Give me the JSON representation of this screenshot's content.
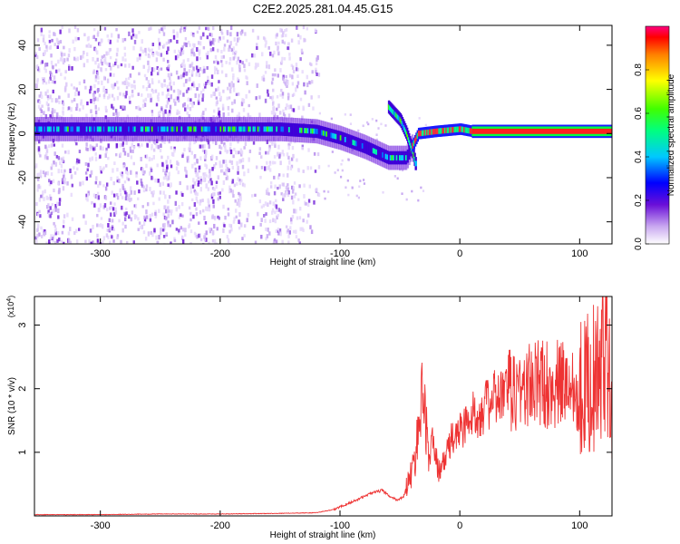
{
  "title": "C2E2.2025.281.04.45.G15",
  "chart_data": [
    {
      "type": "heatmap",
      "title": "C2E2.2025.281.04.45.G15",
      "xlabel": "Height of straight line (km)",
      "ylabel": "Frequency (Hz)",
      "xlim": [
        -355,
        127
      ],
      "ylim": [
        -50,
        49
      ],
      "x_ticks": [
        -300,
        -200,
        -100,
        0,
        100
      ],
      "y_ticks": [
        -40,
        -20,
        0,
        20,
        40
      ],
      "colorbar": {
        "label": "Normalized spectral amplitude",
        "range": [
          0.0,
          1.0
        ],
        "ticks": [
          0.0,
          0.2,
          0.4,
          0.6,
          0.8
        ]
      },
      "signal_track": [
        {
          "x": -355,
          "y": 2
        },
        {
          "x": -300,
          "y": 2
        },
        {
          "x": -250,
          "y": 2
        },
        {
          "x": -200,
          "y": 2
        },
        {
          "x": -150,
          "y": 2
        },
        {
          "x": -120,
          "y": 1
        },
        {
          "x": -100,
          "y": -2
        },
        {
          "x": -80,
          "y": -6
        },
        {
          "x": -60,
          "y": -11
        },
        {
          "x": -45,
          "y": -11
        },
        {
          "x": -35,
          "y": 0
        },
        {
          "x": -20,
          "y": 1
        },
        {
          "x": 0,
          "y": 2
        },
        {
          "x": 10,
          "y": 1
        },
        {
          "x": 60,
          "y": 1
        },
        {
          "x": 100,
          "y": 1
        },
        {
          "x": 127,
          "y": 1
        }
      ],
      "branch_track": [
        {
          "x": -60,
          "y": 12
        },
        {
          "x": -50,
          "y": 6
        },
        {
          "x": -45,
          "y": 0
        },
        {
          "x": -40,
          "y": -8
        },
        {
          "x": -37,
          "y": -15
        }
      ]
    },
    {
      "type": "line",
      "xlabel": "Height of straight line (km)",
      "ylabel": "SNR (10 * v/v)",
      "y_multiplier": "(x10",
      "y_multiplier_exp": "4",
      "y_multiplier_close": ")",
      "xlim": [
        -355,
        127
      ],
      "ylim": [
        0,
        3.45
      ],
      "x_ticks": [
        -300,
        -200,
        -100,
        0,
        100
      ],
      "y_ticks": [
        1,
        2,
        3
      ],
      "line_color": "#ee3333",
      "series": [
        {
          "name": "SNR",
          "x": [
            -355,
            -300,
            -250,
            -200,
            -150,
            -120,
            -105,
            -95,
            -85,
            -75,
            -65,
            -58,
            -52,
            -47,
            -43,
            -38,
            -34,
            -30,
            -26,
            -22,
            -18,
            -14,
            -10,
            -5,
            0,
            5,
            10,
            20,
            30,
            40,
            50,
            60,
            70,
            80,
            90,
            100,
            110,
            118,
            122,
            127
          ],
          "y": [
            0.02,
            0.02,
            0.03,
            0.03,
            0.04,
            0.05,
            0.1,
            0.18,
            0.26,
            0.35,
            0.4,
            0.3,
            0.25,
            0.3,
            0.55,
            0.8,
            1.5,
            2.0,
            0.9,
            1.2,
            0.7,
            0.8,
            1.05,
            1.25,
            1.35,
            1.45,
            1.55,
            1.7,
            1.85,
            1.95,
            2.0,
            2.05,
            2.1,
            2.05,
            2.1,
            2.0,
            2.15,
            2.2,
            3.1,
            1.9
          ]
        }
      ]
    }
  ]
}
